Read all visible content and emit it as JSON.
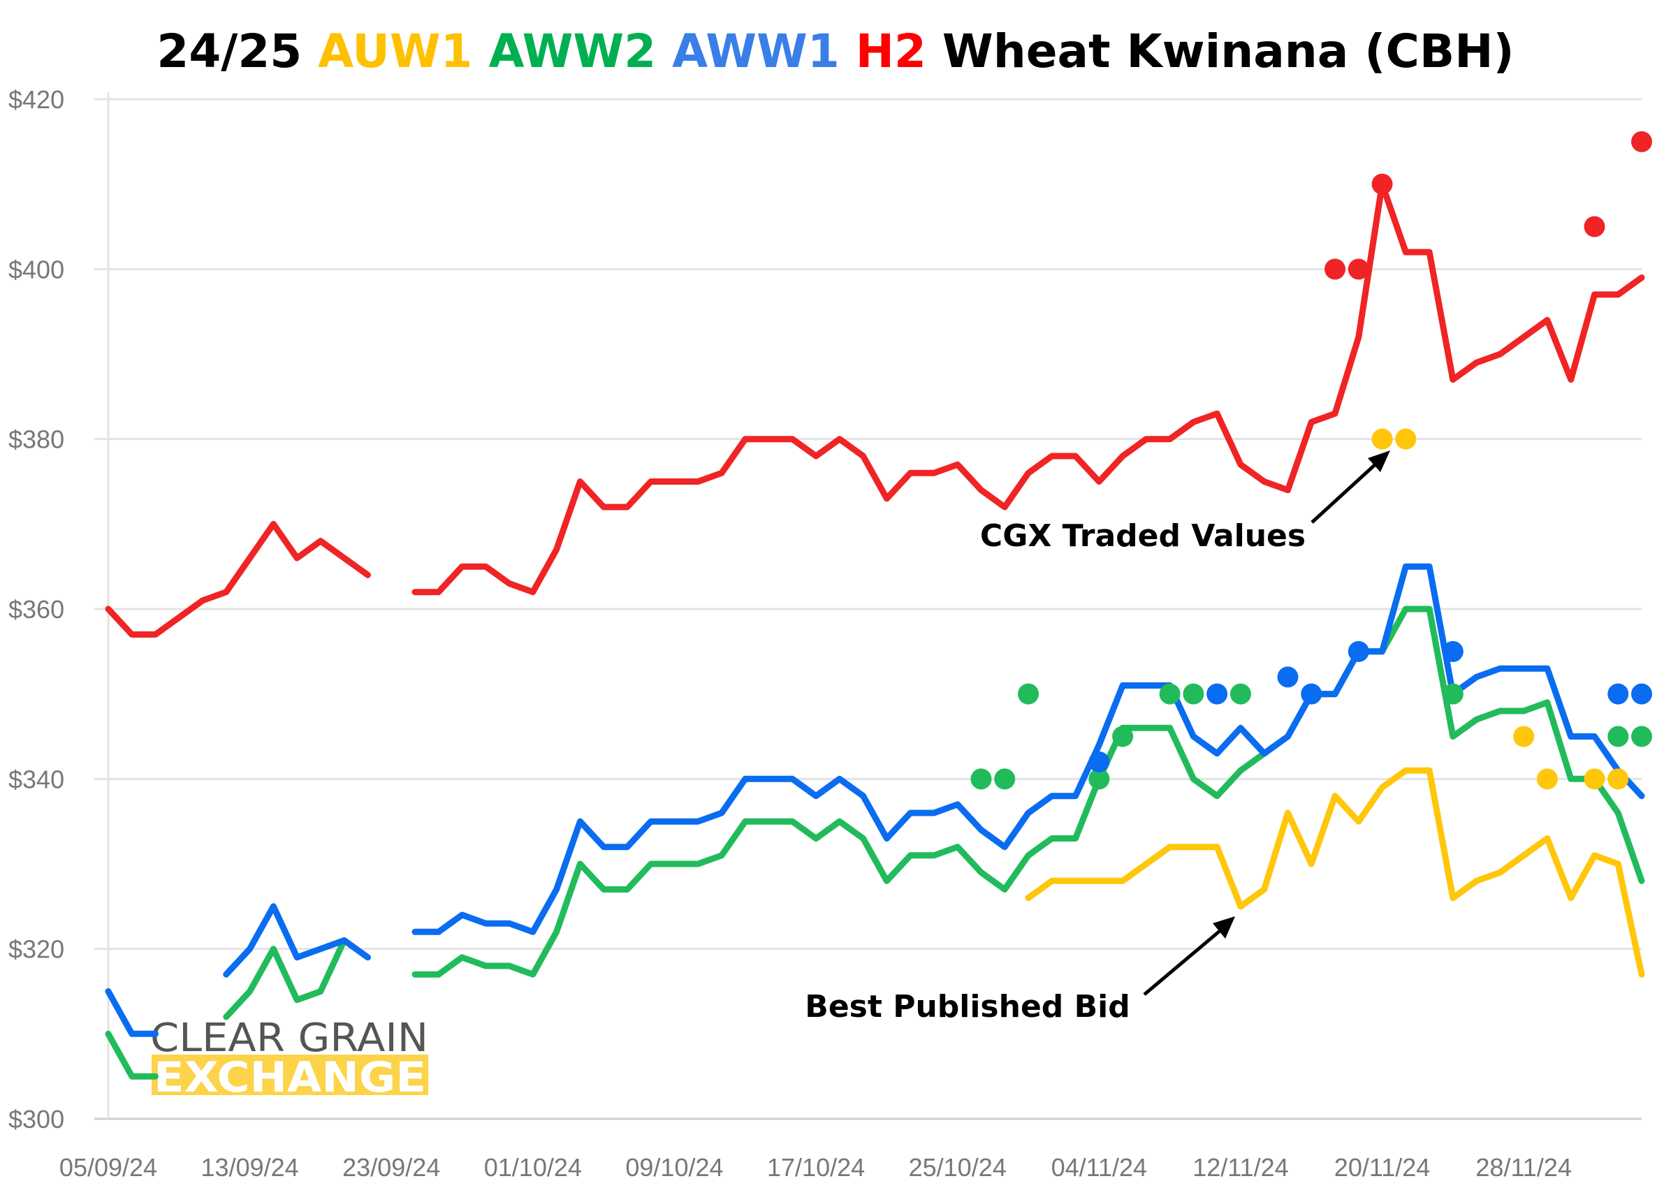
{
  "chart_data": {
    "type": "line",
    "title_parts": [
      {
        "text": "24/25 ",
        "color": "#000000"
      },
      {
        "text": "AUW1 ",
        "color": "#ffc000"
      },
      {
        "text": "AWW2 ",
        "color": "#00b050"
      },
      {
        "text": "AWW1 ",
        "color": "#3a7ee8"
      },
      {
        "text": "H2 ",
        "color": "#ff0000"
      },
      {
        "text": "Wheat Kwinana (CBH)",
        "color": "#000000"
      }
    ],
    "ylim": [
      300,
      420
    ],
    "yticks": [
      300,
      320,
      340,
      360,
      380,
      400,
      420
    ],
    "ytick_labels": [
      "$300",
      "$320",
      "$340",
      "$360",
      "$380",
      "$400",
      "$420"
    ],
    "grid": true,
    "x": [
      "05/09/24",
      "06/09/24",
      "09/09/24",
      "10/09/24",
      "11/09/24",
      "12/09/24",
      "13/09/24",
      "16/09/24",
      "17/09/24",
      "18/09/24",
      "19/09/24",
      "20/09/24",
      "23/09/24",
      "24/09/24",
      "25/09/24",
      "26/09/24",
      "27/09/24",
      "30/09/24",
      "01/10/24",
      "02/10/24",
      "03/10/24",
      "04/10/24",
      "07/10/24",
      "08/10/24",
      "09/10/24",
      "10/10/24",
      "11/10/24",
      "14/10/24",
      "15/10/24",
      "16/10/24",
      "17/10/24",
      "18/10/24",
      "21/10/24",
      "22/10/24",
      "23/10/24",
      "24/10/24",
      "25/10/24",
      "28/10/24",
      "29/10/24",
      "30/10/24",
      "31/10/24",
      "01/11/24",
      "04/11/24",
      "05/11/24",
      "06/11/24",
      "07/11/24",
      "08/11/24",
      "11/11/24",
      "12/11/24",
      "13/11/24",
      "14/11/24",
      "15/11/24",
      "18/11/24",
      "19/11/24",
      "20/11/24",
      "21/11/24",
      "22/11/24",
      "25/11/24",
      "26/11/24",
      "27/11/24",
      "28/11/24",
      "29/11/24",
      "02/12/24",
      "03/12/24",
      "04/12/24",
      "05/12/24"
    ],
    "xtick_labels": [
      "05/09/24",
      "13/09/24",
      "23/09/24",
      "01/10/24",
      "09/10/24",
      "17/10/24",
      "25/10/24",
      "04/11/24",
      "12/11/24",
      "20/11/24",
      "28/11/24"
    ],
    "series": [
      {
        "name": "H2",
        "color": "#f02424",
        "values": [
          360,
          357,
          357,
          359,
          361,
          362,
          366,
          370,
          366,
          368,
          366,
          364,
          null,
          362,
          362,
          365,
          365,
          363,
          362,
          367,
          375,
          372,
          372,
          375,
          375,
          375,
          376,
          380,
          380,
          380,
          378,
          380,
          378,
          373,
          376,
          376,
          377,
          374,
          372,
          376,
          378,
          378,
          375,
          378,
          380,
          380,
          382,
          383,
          377,
          375,
          374,
          382,
          383,
          392,
          410,
          402,
          402,
          387,
          389,
          390,
          392,
          394,
          387,
          397,
          397,
          399
        ]
      },
      {
        "name": "AWW1",
        "color": "#0a6cf0",
        "values": [
          315,
          310,
          310,
          null,
          null,
          317,
          320,
          325,
          319,
          320,
          321,
          319,
          null,
          322,
          322,
          324,
          323,
          323,
          322,
          327,
          335,
          332,
          332,
          335,
          335,
          335,
          336,
          340,
          340,
          340,
          338,
          340,
          338,
          333,
          336,
          336,
          337,
          334,
          332,
          336,
          338,
          338,
          344,
          351,
          351,
          351,
          345,
          343,
          346,
          343,
          345,
          350,
          350,
          355,
          355,
          365,
          365,
          350,
          352,
          353,
          353,
          353,
          345,
          345,
          341,
          338
        ]
      },
      {
        "name": "AWW2",
        "color": "#22bb5b",
        "values": [
          310,
          305,
          305,
          null,
          null,
          312,
          315,
          320,
          314,
          315,
          321,
          null,
          null,
          317,
          317,
          319,
          318,
          318,
          317,
          322,
          330,
          327,
          327,
          330,
          330,
          330,
          331,
          335,
          335,
          335,
          333,
          335,
          333,
          328,
          331,
          331,
          332,
          329,
          327,
          331,
          333,
          333,
          340,
          346,
          346,
          346,
          340,
          338,
          341,
          343,
          345,
          350,
          350,
          355,
          355,
          360,
          360,
          345,
          347,
          348,
          348,
          349,
          340,
          340,
          336,
          328
        ]
      },
      {
        "name": "AUW1",
        "color": "#ffc60b",
        "values": [
          null,
          null,
          null,
          null,
          null,
          null,
          null,
          null,
          null,
          null,
          null,
          null,
          null,
          null,
          null,
          null,
          null,
          null,
          null,
          null,
          null,
          null,
          null,
          null,
          null,
          null,
          null,
          null,
          null,
          null,
          null,
          null,
          null,
          null,
          null,
          null,
          null,
          null,
          null,
          326,
          328,
          328,
          328,
          328,
          330,
          332,
          332,
          332,
          325,
          327,
          336,
          330,
          338,
          335,
          339,
          341,
          341,
          326,
          328,
          329,
          331,
          333,
          326,
          331,
          330,
          317
        ]
      }
    ],
    "traded_points": [
      {
        "series": "H2",
        "color": "#f02424",
        "points": [
          [
            52,
            400
          ],
          [
            53,
            400
          ],
          [
            54,
            410
          ],
          [
            63,
            405
          ],
          [
            65,
            415
          ]
        ]
      },
      {
        "series": "AUW1",
        "color": "#ffc60b",
        "points": [
          [
            54,
            380
          ],
          [
            55,
            380
          ],
          [
            60,
            345
          ],
          [
            61,
            340
          ],
          [
            63,
            340
          ],
          [
            64,
            340
          ]
        ]
      },
      {
        "series": "AWW2",
        "color": "#22bb5b",
        "points": [
          [
            37,
            340
          ],
          [
            38,
            340
          ],
          [
            39,
            350
          ],
          [
            42,
            340
          ],
          [
            43,
            345
          ],
          [
            45,
            350
          ],
          [
            46,
            350
          ],
          [
            48,
            350
          ],
          [
            57,
            350
          ],
          [
            64,
            345
          ],
          [
            65,
            345
          ]
        ]
      },
      {
        "series": "AWW1",
        "color": "#0a6cf0",
        "points": [
          [
            42,
            342
          ],
          [
            47,
            350
          ],
          [
            50,
            352
          ],
          [
            51,
            350
          ],
          [
            53,
            355
          ],
          [
            57,
            355
          ],
          [
            64,
            350
          ],
          [
            65,
            350
          ]
        ]
      }
    ],
    "annotations": {
      "traded": "CGX Traded Values",
      "bid": "Best Published Bid"
    }
  },
  "logo": {
    "line1": "CLEAR GRAIN",
    "line2": "EXCHANGE",
    "accent": "#fcd349"
  }
}
